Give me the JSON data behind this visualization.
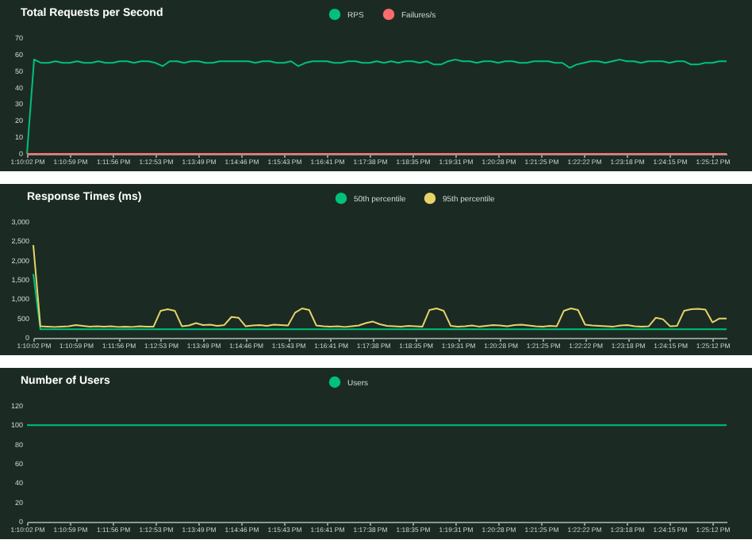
{
  "chart_data": [
    {
      "type": "line",
      "title": "Total Requests per Second",
      "legend": "top",
      "line_style": "solid",
      "categories": [
        "1:10:02 PM",
        null,
        null,
        null,
        null,
        null,
        "1:10:59 PM",
        null,
        null,
        null,
        null,
        null,
        "1:11:56 PM",
        null,
        null,
        null,
        null,
        null,
        "1:12:53 PM",
        null,
        null,
        null,
        null,
        null,
        "1:13:49 PM",
        null,
        null,
        null,
        null,
        null,
        "1:14:46 PM",
        null,
        null,
        null,
        null,
        null,
        "1:15:43 PM",
        null,
        null,
        null,
        null,
        null,
        "1:16:41 PM",
        null,
        null,
        null,
        null,
        null,
        "1:17:38 PM",
        null,
        null,
        null,
        null,
        null,
        "1:18:35 PM",
        null,
        null,
        null,
        null,
        null,
        "1:19:31 PM",
        null,
        null,
        null,
        null,
        null,
        "1:20:28 PM",
        null,
        null,
        null,
        null,
        null,
        "1:21:25 PM",
        null,
        null,
        null,
        null,
        null,
        "1:22:22 PM",
        null,
        null,
        null,
        null,
        null,
        "1:23:18 PM",
        null,
        null,
        null,
        null,
        null,
        "1:24:15 PM",
        null,
        null,
        null,
        null,
        null,
        "1:25:12 PM",
        null,
        null
      ],
      "ylim": [
        0,
        70
      ],
      "yticks": [
        0,
        10,
        20,
        30,
        40,
        50,
        60,
        70
      ],
      "series": [
        {
          "name": "RPS",
          "color": "#00c17a",
          "values": [
            0,
            57,
            55,
            55,
            56,
            55,
            55,
            56,
            55,
            55,
            56,
            55,
            55,
            56,
            56,
            55,
            56,
            56,
            55,
            53,
            56,
            56,
            55,
            56,
            56,
            55,
            55,
            56,
            56,
            56,
            56,
            56,
            55,
            56,
            56,
            55,
            55,
            56,
            53,
            55,
            56,
            56,
            56,
            55,
            55,
            56,
            56,
            55,
            55,
            56,
            55,
            56,
            55,
            56,
            56,
            55,
            56,
            54,
            54,
            56,
            57,
            56,
            56,
            55,
            56,
            56,
            55,
            56,
            56,
            55,
            55,
            56,
            56,
            56,
            55,
            55,
            52,
            54,
            55,
            56,
            56,
            55,
            56,
            57,
            56,
            56,
            55,
            56,
            56,
            56,
            55,
            56,
            56,
            54,
            54,
            55,
            55,
            56,
            56
          ]
        },
        {
          "name": "Failures/s",
          "color": "#ff6b6b",
          "values": [
            0,
            0,
            0,
            0,
            0,
            0,
            0,
            0,
            0,
            0,
            0,
            0,
            0,
            0,
            0,
            0,
            0,
            0,
            0,
            0,
            0,
            0,
            0,
            0,
            0,
            0,
            0,
            0,
            0,
            0,
            0,
            0,
            0,
            0,
            0,
            0,
            0,
            0,
            0,
            0,
            0,
            0,
            0,
            0,
            0,
            0,
            0,
            0,
            0,
            0,
            0,
            0,
            0,
            0,
            0,
            0,
            0,
            0,
            0,
            0,
            0,
            0,
            0,
            0,
            0,
            0,
            0,
            0,
            0,
            0,
            0,
            0,
            0,
            0,
            0,
            0,
            0,
            0,
            0,
            0,
            0,
            0,
            0,
            0,
            0,
            0,
            0,
            0,
            0,
            0,
            0,
            0,
            0,
            0,
            0,
            0,
            0,
            0,
            0
          ]
        }
      ]
    },
    {
      "type": "line",
      "title": "Response Times (ms)",
      "legend": "top",
      "line_style": "solid",
      "categories": [
        "1:10:02 PM",
        null,
        null,
        null,
        null,
        null,
        "1:10:59 PM",
        null,
        null,
        null,
        null,
        null,
        "1:11:56 PM",
        null,
        null,
        null,
        null,
        null,
        "1:12:53 PM",
        null,
        null,
        null,
        null,
        null,
        "1:13:49 PM",
        null,
        null,
        null,
        null,
        null,
        "1:14:46 PM",
        null,
        null,
        null,
        null,
        null,
        "1:15:43 PM",
        null,
        null,
        null,
        null,
        null,
        "1:16:41 PM",
        null,
        null,
        null,
        null,
        null,
        "1:17:38 PM",
        null,
        null,
        null,
        null,
        null,
        "1:18:35 PM",
        null,
        null,
        null,
        null,
        null,
        "1:19:31 PM",
        null,
        null,
        null,
        null,
        null,
        "1:20:28 PM",
        null,
        null,
        null,
        null,
        null,
        "1:21:25 PM",
        null,
        null,
        null,
        null,
        null,
        "1:22:22 PM",
        null,
        null,
        null,
        null,
        null,
        "1:23:18 PM",
        null,
        null,
        null,
        null,
        null,
        "1:24:15 PM",
        null,
        null,
        null,
        null,
        null,
        "1:25:12 PM",
        null,
        null
      ],
      "ylim": [
        0,
        3000
      ],
      "yticks": [
        0,
        500,
        {
          "value": 1000,
          "label": "1,000"
        },
        {
          "value": 1500,
          "label": "1,500"
        },
        {
          "value": 2000,
          "label": "2,000"
        },
        {
          "value": 2500,
          "label": "2,500"
        },
        {
          "value": 3000,
          "label": "3,000"
        }
      ],
      "series": [
        {
          "name": "50th percentile",
          "color": "#00c17a",
          "values": [
            1650,
            220,
            220,
            220,
            220,
            220,
            220,
            220,
            220,
            220,
            220,
            220,
            220,
            220,
            220,
            220,
            220,
            220,
            220,
            220,
            220,
            220,
            220,
            220,
            220,
            220,
            220,
            220,
            220,
            220,
            220,
            220,
            220,
            220,
            220,
            220,
            220,
            220,
            220,
            220,
            220,
            220,
            220,
            220,
            220,
            220,
            220,
            220,
            220,
            220,
            220,
            220,
            220,
            220,
            220,
            220,
            220,
            220,
            220,
            220,
            220,
            220,
            220,
            220,
            220,
            220,
            220,
            220,
            220,
            220,
            220,
            220,
            220,
            220,
            220,
            220,
            220,
            220,
            220,
            220,
            220,
            220,
            220,
            220,
            220,
            220,
            220,
            220,
            220,
            220,
            220,
            220,
            220,
            220,
            220,
            220,
            220,
            220,
            220
          ]
        },
        {
          "name": "95th percentile",
          "color": "#e8d36a",
          "values": [
            2400,
            300,
            290,
            280,
            290,
            300,
            330,
            310,
            290,
            300,
            290,
            300,
            280,
            290,
            280,
            300,
            290,
            290,
            700,
            740,
            700,
            300,
            320,
            380,
            330,
            340,
            310,
            330,
            540,
            520,
            300,
            320,
            330,
            310,
            340,
            330,
            320,
            650,
            760,
            720,
            320,
            300,
            290,
            300,
            280,
            300,
            320,
            380,
            420,
            350,
            310,
            300,
            290,
            310,
            300,
            290,
            720,
            760,
            700,
            310,
            290,
            300,
            320,
            290,
            310,
            330,
            320,
            300,
            330,
            340,
            320,
            300,
            290,
            310,
            300,
            700,
            760,
            720,
            340,
            320,
            310,
            300,
            290,
            320,
            330,
            300,
            290,
            300,
            520,
            480,
            300,
            310,
            700,
            740,
            750,
            730,
            400,
            500,
            500
          ]
        }
      ]
    },
    {
      "type": "line",
      "title": "Number of Users",
      "legend": "top",
      "line_style": "solid",
      "categories": [
        "1:10:02 PM",
        null,
        null,
        null,
        null,
        null,
        "1:10:59 PM",
        null,
        null,
        null,
        null,
        null,
        "1:11:56 PM",
        null,
        null,
        null,
        null,
        null,
        "1:12:53 PM",
        null,
        null,
        null,
        null,
        null,
        "1:13:49 PM",
        null,
        null,
        null,
        null,
        null,
        "1:14:46 PM",
        null,
        null,
        null,
        null,
        null,
        "1:15:43 PM",
        null,
        null,
        null,
        null,
        null,
        "1:16:41 PM",
        null,
        null,
        null,
        null,
        null,
        "1:17:38 PM",
        null,
        null,
        null,
        null,
        null,
        "1:18:35 PM",
        null,
        null,
        null,
        null,
        null,
        "1:19:31 PM",
        null,
        null,
        null,
        null,
        null,
        "1:20:28 PM",
        null,
        null,
        null,
        null,
        null,
        "1:21:25 PM",
        null,
        null,
        null,
        null,
        null,
        "1:22:22 PM",
        null,
        null,
        null,
        null,
        null,
        "1:23:18 PM",
        null,
        null,
        null,
        null,
        null,
        "1:24:15 PM",
        null,
        null,
        null,
        null,
        null,
        "1:25:12 PM",
        null,
        null
      ],
      "ylim": [
        0,
        120
      ],
      "yticks": [
        0,
        20,
        40,
        60,
        80,
        100,
        120
      ],
      "series": [
        {
          "name": "Users",
          "color": "#00c17a",
          "values": [
            100,
            100,
            100,
            100,
            100,
            100,
            100,
            100,
            100,
            100,
            100,
            100,
            100,
            100,
            100,
            100,
            100,
            100,
            100,
            100,
            100,
            100,
            100,
            100,
            100,
            100,
            100,
            100,
            100,
            100,
            100,
            100,
            100,
            100,
            100,
            100,
            100,
            100,
            100,
            100,
            100,
            100,
            100,
            100,
            100,
            100,
            100,
            100,
            100,
            100,
            100,
            100,
            100,
            100,
            100,
            100,
            100,
            100,
            100,
            100,
            100,
            100,
            100,
            100,
            100,
            100,
            100,
            100,
            100,
            100,
            100,
            100,
            100,
            100,
            100,
            100,
            100,
            100,
            100,
            100,
            100,
            100,
            100,
            100,
            100,
            100,
            100,
            100,
            100,
            100,
            100,
            100,
            100,
            100,
            100,
            100,
            100,
            100,
            100
          ]
        }
      ]
    }
  ]
}
